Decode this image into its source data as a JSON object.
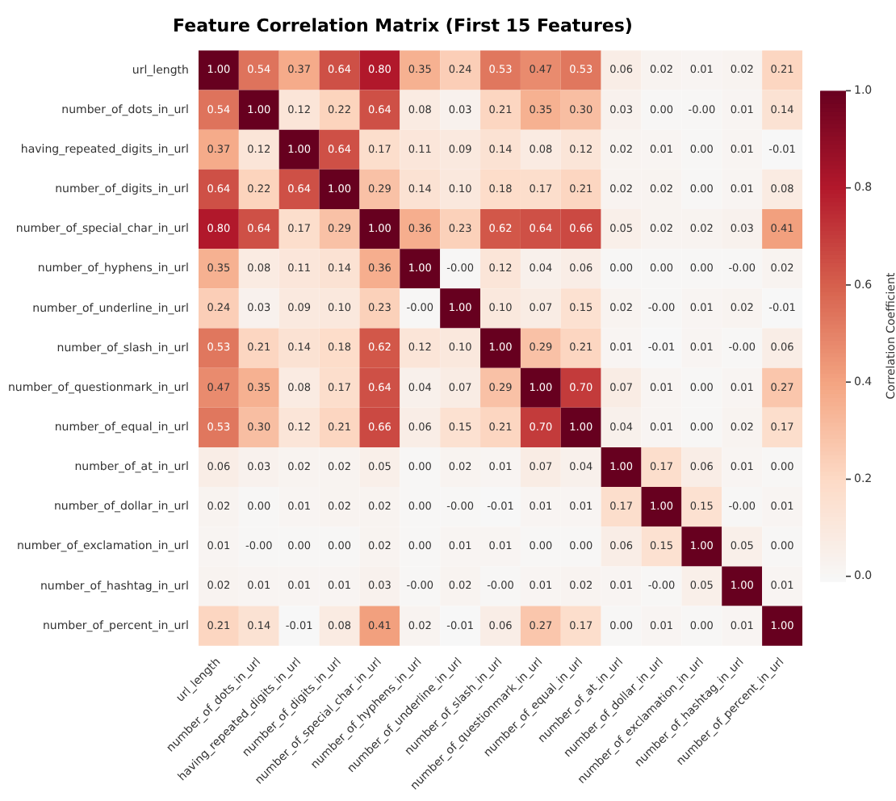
{
  "chart_data": {
    "type": "heatmap",
    "title": "Feature Correlation Matrix (First 15 Features)",
    "clabel": "Correlation Coefficient",
    "categories": [
      "url_length",
      "number_of_dots_in_url",
      "having_repeated_digits_in_url",
      "number_of_digits_in_url",
      "number_of_special_char_in_url",
      "number_of_hyphens_in_url",
      "number_of_underline_in_url",
      "number_of_slash_in_url",
      "number_of_questionmark_in_url",
      "number_of_equal_in_url",
      "number_of_at_in_url",
      "number_of_dollar_in_url",
      "number_of_exclamation_in_url",
      "number_of_hashtag_in_url",
      "number_of_percent_in_url"
    ],
    "y_categories": [
      "url_length",
      "number_of_dots_in_url",
      "having_repeated_digits_in_url",
      "number_of_digits_in_url",
      "number_of_special_char_in_url",
      "number_of_hyphens_in_url",
      "number_of_underline_in_url",
      "number_of_slash_in_url",
      "number_of_questionmark_in_url",
      "number_of_equal_in_url",
      "number_of_at_in_url",
      "number_of_dollar_in_url",
      "number_of_exclamation_in_url",
      "number_of_hashtag_in_url",
      "number_of_percent_in_url"
    ],
    "cells": [
      [
        1.0,
        0.54,
        0.37,
        0.64,
        0.8,
        0.35,
        0.24,
        0.53,
        0.47,
        0.53,
        0.06,
        0.02,
        0.01,
        0.02,
        0.21
      ],
      [
        0.54,
        1.0,
        0.12,
        0.22,
        0.64,
        0.08,
        0.03,
        0.21,
        0.35,
        0.3,
        0.03,
        0.0,
        -0.0,
        0.01,
        0.14
      ],
      [
        0.37,
        0.12,
        1.0,
        0.64,
        0.17,
        0.11,
        0.09,
        0.14,
        0.08,
        0.12,
        0.02,
        0.01,
        0.0,
        0.01,
        -0.01
      ],
      [
        0.64,
        0.22,
        0.64,
        1.0,
        0.29,
        0.14,
        0.1,
        0.18,
        0.17,
        0.21,
        0.02,
        0.02,
        0.0,
        0.01,
        0.08
      ],
      [
        0.8,
        0.64,
        0.17,
        0.29,
        1.0,
        0.36,
        0.23,
        0.62,
        0.64,
        0.66,
        0.05,
        0.02,
        0.02,
        0.03,
        0.41
      ],
      [
        0.35,
        0.08,
        0.11,
        0.14,
        0.36,
        1.0,
        -0.0,
        0.12,
        0.04,
        0.06,
        0.0,
        0.0,
        0.0,
        -0.0,
        0.02
      ],
      [
        0.24,
        0.03,
        0.09,
        0.1,
        0.23,
        -0.0,
        1.0,
        0.1,
        0.07,
        0.15,
        0.02,
        -0.0,
        0.01,
        0.02,
        -0.01
      ],
      [
        0.53,
        0.21,
        0.14,
        0.18,
        0.62,
        0.12,
        0.1,
        1.0,
        0.29,
        0.21,
        0.01,
        -0.01,
        0.01,
        -0.0,
        0.06
      ],
      [
        0.47,
        0.35,
        0.08,
        0.17,
        0.64,
        0.04,
        0.07,
        0.29,
        1.0,
        0.7,
        0.07,
        0.01,
        0.0,
        0.01,
        0.27
      ],
      [
        0.53,
        0.3,
        0.12,
        0.21,
        0.66,
        0.06,
        0.15,
        0.21,
        0.7,
        1.0,
        0.04,
        0.01,
        0.0,
        0.02,
        0.17
      ],
      [
        0.06,
        0.03,
        0.02,
        0.02,
        0.05,
        0.0,
        0.02,
        0.01,
        0.07,
        0.04,
        1.0,
        0.17,
        0.06,
        0.01,
        0.0
      ],
      [
        0.02,
        0.0,
        0.01,
        0.02,
        0.02,
        0.0,
        -0.0,
        -0.01,
        0.01,
        0.01,
        0.17,
        1.0,
        0.15,
        -0.0,
        0.01
      ],
      [
        0.01,
        -0.0,
        0.0,
        0.0,
        0.02,
        0.0,
        0.01,
        0.01,
        0.0,
        0.0,
        0.06,
        0.15,
        1.0,
        0.05,
        0.0
      ],
      [
        0.02,
        0.01,
        0.01,
        0.01,
        0.03,
        -0.0,
        0.02,
        -0.0,
        0.01,
        0.02,
        0.01,
        -0.0,
        0.05,
        1.0,
        0.01
      ],
      [
        0.21,
        0.14,
        -0.01,
        0.08,
        0.41,
        0.02,
        -0.01,
        0.06,
        0.27,
        0.17,
        0.0,
        0.01,
        0.0,
        0.01,
        1.0
      ]
    ],
    "cell_labels": [
      [
        "1.00",
        "0.54",
        "0.37",
        "0.64",
        "0.80",
        "0.35",
        "0.24",
        "0.53",
        "0.47",
        "0.53",
        "0.06",
        "0.02",
        "0.01",
        "0.02",
        "0.21"
      ],
      [
        "0.54",
        "1.00",
        "0.12",
        "0.22",
        "0.64",
        "0.08",
        "0.03",
        "0.21",
        "0.35",
        "0.30",
        "0.03",
        "0.00",
        "-0.00",
        "0.01",
        "0.14"
      ],
      [
        "0.37",
        "0.12",
        "1.00",
        "0.64",
        "0.17",
        "0.11",
        "0.09",
        "0.14",
        "0.08",
        "0.12",
        "0.02",
        "0.01",
        "0.00",
        "0.01",
        "-0.01"
      ],
      [
        "0.64",
        "0.22",
        "0.64",
        "1.00",
        "0.29",
        "0.14",
        "0.10",
        "0.18",
        "0.17",
        "0.21",
        "0.02",
        "0.02",
        "0.00",
        "0.01",
        "0.08"
      ],
      [
        "0.80",
        "0.64",
        "0.17",
        "0.29",
        "1.00",
        "0.36",
        "0.23",
        "0.62",
        "0.64",
        "0.66",
        "0.05",
        "0.02",
        "0.02",
        "0.03",
        "0.41"
      ],
      [
        "0.35",
        "0.08",
        "0.11",
        "0.14",
        "0.36",
        "1.00",
        "-0.00",
        "0.12",
        "0.04",
        "0.06",
        "0.00",
        "0.00",
        "0.00",
        "-0.00",
        "0.02"
      ],
      [
        "0.24",
        "0.03",
        "0.09",
        "0.10",
        "0.23",
        "-0.00",
        "1.00",
        "0.10",
        "0.07",
        "0.15",
        "0.02",
        "-0.00",
        "0.01",
        "0.02",
        "-0.01"
      ],
      [
        "0.53",
        "0.21",
        "0.14",
        "0.18",
        "0.62",
        "0.12",
        "0.10",
        "1.00",
        "0.29",
        "0.21",
        "0.01",
        "-0.01",
        "0.01",
        "-0.00",
        "0.06"
      ],
      [
        "0.47",
        "0.35",
        "0.08",
        "0.17",
        "0.64",
        "0.04",
        "0.07",
        "0.29",
        "1.00",
        "0.70",
        "0.07",
        "0.01",
        "0.00",
        "0.01",
        "0.27"
      ],
      [
        "0.53",
        "0.30",
        "0.12",
        "0.21",
        "0.66",
        "0.06",
        "0.15",
        "0.21",
        "0.70",
        "1.00",
        "0.04",
        "0.01",
        "0.00",
        "0.02",
        "0.17"
      ],
      [
        "0.06",
        "0.03",
        "0.02",
        "0.02",
        "0.05",
        "0.00",
        "0.02",
        "0.01",
        "0.07",
        "0.04",
        "1.00",
        "0.17",
        "0.06",
        "0.01",
        "0.00"
      ],
      [
        "0.02",
        "0.00",
        "0.01",
        "0.02",
        "0.02",
        "0.00",
        "-0.00",
        "-0.01",
        "0.01",
        "0.01",
        "0.17",
        "1.00",
        "0.15",
        "-0.00",
        "0.01"
      ],
      [
        "0.01",
        "-0.00",
        "0.00",
        "0.00",
        "0.02",
        "0.00",
        "0.01",
        "0.01",
        "0.00",
        "0.00",
        "0.06",
        "0.15",
        "1.00",
        "0.05",
        "0.00"
      ],
      [
        "0.02",
        "0.01",
        "0.01",
        "0.01",
        "0.03",
        "-0.00",
        "0.02",
        "-0.00",
        "0.01",
        "0.02",
        "0.01",
        "-0.00",
        "0.05",
        "1.00",
        "0.01"
      ],
      [
        "0.21",
        "0.14",
        "-0.01",
        "0.08",
        "0.41",
        "0.02",
        "-0.01",
        "0.06",
        "0.27",
        "0.17",
        "0.00",
        "0.01",
        "0.00",
        "0.01",
        "1.00"
      ]
    ],
    "clim": [
      -0.01,
      1
    ],
    "cticks": [
      {
        "value": 0,
        "label": "0.0"
      },
      {
        "value": 0.2,
        "label": "0.2"
      },
      {
        "value": 0.4,
        "label": "0.4"
      },
      {
        "value": 0.6,
        "label": "0.6"
      },
      {
        "value": 0.8,
        "label": "0.8"
      },
      {
        "value": 1,
        "label": "1.0"
      }
    ]
  }
}
